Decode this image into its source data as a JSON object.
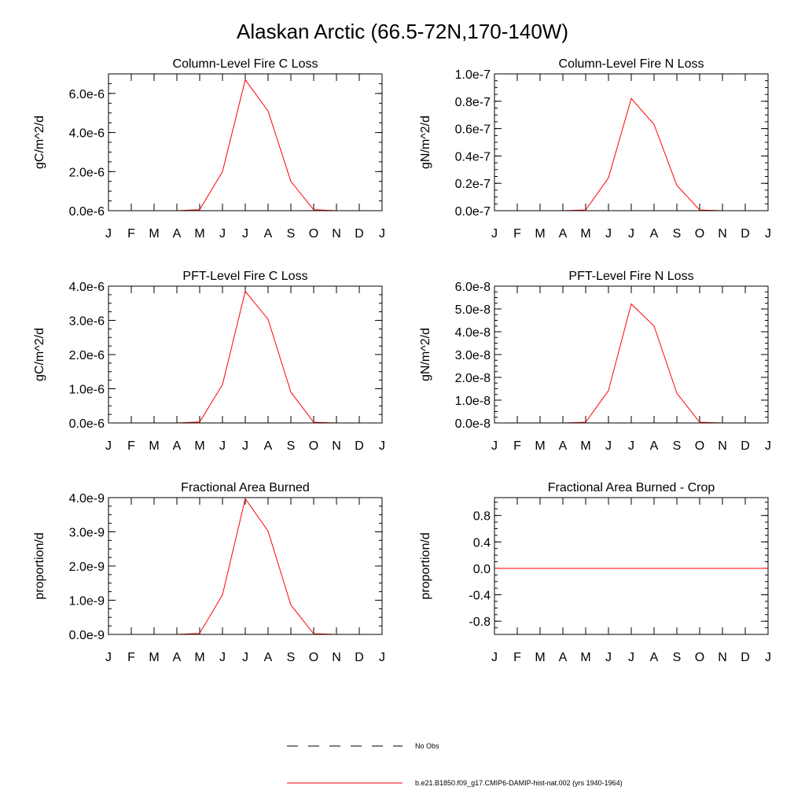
{
  "figure_title": "Alaskan Arctic (66.5-72N,170-140W)",
  "months": [
    "J",
    "F",
    "M",
    "A",
    "M",
    "J",
    "J",
    "A",
    "S",
    "O",
    "N",
    "D",
    "J"
  ],
  "series_color": "#ff0000",
  "legend": {
    "no_obs_label": "No Obs",
    "model_label": "b.e21.B1850.f09_g17.CMIP6-DAMIP-hist-nat.002 (yrs 1940-1964)"
  },
  "chart_data": [
    {
      "type": "line",
      "title": "Column-Level Fire C Loss",
      "ylabel": "gC/m^2/d",
      "ylim": [
        0,
        7e-06
      ],
      "yticks": [
        0,
        2e-06,
        4e-06,
        6e-06
      ],
      "ytick_labels": [
        "0.0e-6",
        "2.0e-6",
        "4.0e-6",
        "6.0e-6"
      ],
      "yminor_step": 5e-07,
      "values": [
        0,
        0,
        0,
        0,
        5e-08,
        2e-06,
        6.7e-06,
        5.1e-06,
        1.5e-06,
        5e-08,
        0,
        0,
        0
      ]
    },
    {
      "type": "line",
      "title": "Column-Level Fire N Loss",
      "ylabel": "gN/m^2/d",
      "ylim": [
        0,
        1e-07
      ],
      "yticks": [
        0,
        2e-08,
        4e-08,
        6e-08,
        8e-08,
        1e-07
      ],
      "ytick_labels": [
        "0.0e-7",
        "0.2e-7",
        "0.4e-7",
        "0.6e-7",
        "0.8e-7",
        "1.0e-7"
      ],
      "yminor_step": 5e-09,
      "values": [
        0,
        0,
        0,
        0,
        5e-10,
        2.4e-08,
        8.2e-08,
        6.3e-08,
        1.85e-08,
        5e-10,
        0,
        0,
        0
      ]
    },
    {
      "type": "line",
      "title": "PFT-Level Fire C Loss",
      "ylabel": "gC/m^2/d",
      "ylim": [
        0,
        4e-06
      ],
      "yticks": [
        0,
        1e-06,
        2e-06,
        3e-06,
        4e-06
      ],
      "ytick_labels": [
        "0.0e-6",
        "1.0e-6",
        "2.0e-6",
        "3.0e-6",
        "4.0e-6"
      ],
      "yminor_step": 2.5e-07,
      "values": [
        0,
        0,
        0,
        0,
        3e-08,
        1.12e-06,
        3.85e-06,
        3.03e-06,
        9e-07,
        2e-08,
        0,
        0,
        0
      ]
    },
    {
      "type": "line",
      "title": "PFT-Level Fire N Loss",
      "ylabel": "gN/m^2/d",
      "ylim": [
        0,
        6e-08
      ],
      "yticks": [
        0,
        1e-08,
        2e-08,
        3e-08,
        4e-08,
        5e-08,
        6e-08
      ],
      "ytick_labels": [
        "0.0e-8",
        "1.0e-8",
        "2.0e-8",
        "3.0e-8",
        "4.0e-8",
        "5.0e-8",
        "6.0e-8"
      ],
      "yminor_step": 2.5e-09,
      "values": [
        0,
        0,
        0,
        0,
        3e-10,
        1.42e-08,
        5.22e-08,
        4.25e-08,
        1.3e-08,
        3e-10,
        0,
        0,
        0
      ]
    },
    {
      "type": "line",
      "title": "Fractional Area Burned",
      "ylabel": "proportion/d",
      "ylim": [
        0,
        4e-09
      ],
      "yticks": [
        0,
        1e-09,
        2e-09,
        3e-09,
        4e-09
      ],
      "ytick_labels": [
        "0.0e-9",
        "1.0e-9",
        "2.0e-9",
        "3.0e-9",
        "4.0e-9"
      ],
      "yminor_step": 2.5e-10,
      "values": [
        0,
        0,
        0,
        0,
        3e-11,
        1.16e-09,
        3.97e-09,
        3.02e-09,
        8.6e-10,
        2e-11,
        0,
        0,
        0
      ]
    },
    {
      "type": "line",
      "title": "Fractional Area Burned - Crop",
      "ylabel": "proportion/d",
      "ylim": [
        -1.0,
        1.07
      ],
      "yticks": [
        -0.8,
        -0.4,
        0.0,
        0.4,
        0.8
      ],
      "ytick_labels": [
        "-0.8",
        "-0.4",
        "0.0",
        "0.4",
        "0.8"
      ],
      "yminor_step": 0.1,
      "values": [
        0,
        0,
        0,
        0,
        0,
        0,
        0,
        0,
        0,
        0,
        0,
        0,
        0
      ]
    }
  ]
}
